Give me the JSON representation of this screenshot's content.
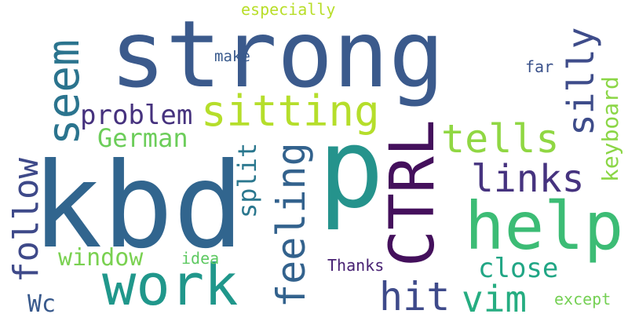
{
  "words": [
    {
      "id": "strong",
      "text": "strong",
      "color": "#3b5a8c"
    },
    {
      "id": "kbd",
      "text": "kbd",
      "color": "#31658e"
    },
    {
      "id": "p",
      "text": "p",
      "color": "#25938c"
    },
    {
      "id": "ctrl",
      "text": "CTRL",
      "color": "#44105c"
    },
    {
      "id": "help",
      "text": "help",
      "color": "#3cbc75"
    },
    {
      "id": "work",
      "text": "work",
      "color": "#20978b"
    },
    {
      "id": "seem",
      "text": "seem",
      "color": "#2b748e"
    },
    {
      "id": "sitting",
      "text": "sitting",
      "color": "#b5de2b"
    },
    {
      "id": "tells",
      "text": "tells",
      "color": "#90d743"
    },
    {
      "id": "feeling",
      "text": "feeling",
      "color": "#33628d"
    },
    {
      "id": "links",
      "text": "links",
      "color": "#46337f"
    },
    {
      "id": "silly",
      "text": "silly",
      "color": "#3e4c8a"
    },
    {
      "id": "follow",
      "text": "follow",
      "color": "#3e4989"
    },
    {
      "id": "hit",
      "text": "hit",
      "color": "#3e4a8a"
    },
    {
      "id": "vim",
      "text": "vim",
      "color": "#26ad81"
    },
    {
      "id": "keyboard",
      "text": "keyboard",
      "color": "#8bd646"
    },
    {
      "id": "problem",
      "text": "problem",
      "color": "#46327e"
    },
    {
      "id": "close",
      "text": "close",
      "color": "#21a685"
    },
    {
      "id": "german",
      "text": "German",
      "color": "#6ccd5a"
    },
    {
      "id": "window",
      "text": "window",
      "color": "#7ad151"
    },
    {
      "id": "split",
      "text": "split",
      "color": "#2a778e"
    },
    {
      "id": "wc",
      "text": "Wc",
      "color": "#38598c"
    },
    {
      "id": "especially",
      "text": "especially",
      "color": "#b8de29"
    },
    {
      "id": "make",
      "text": "make",
      "color": "#38598c"
    },
    {
      "id": "far",
      "text": "far",
      "color": "#3b528b"
    },
    {
      "id": "idea",
      "text": "idea",
      "color": "#5ec962"
    },
    {
      "id": "thanks",
      "text": "Thanks",
      "color": "#482173"
    },
    {
      "id": "except",
      "text": "except",
      "color": "#75d054"
    }
  ]
}
